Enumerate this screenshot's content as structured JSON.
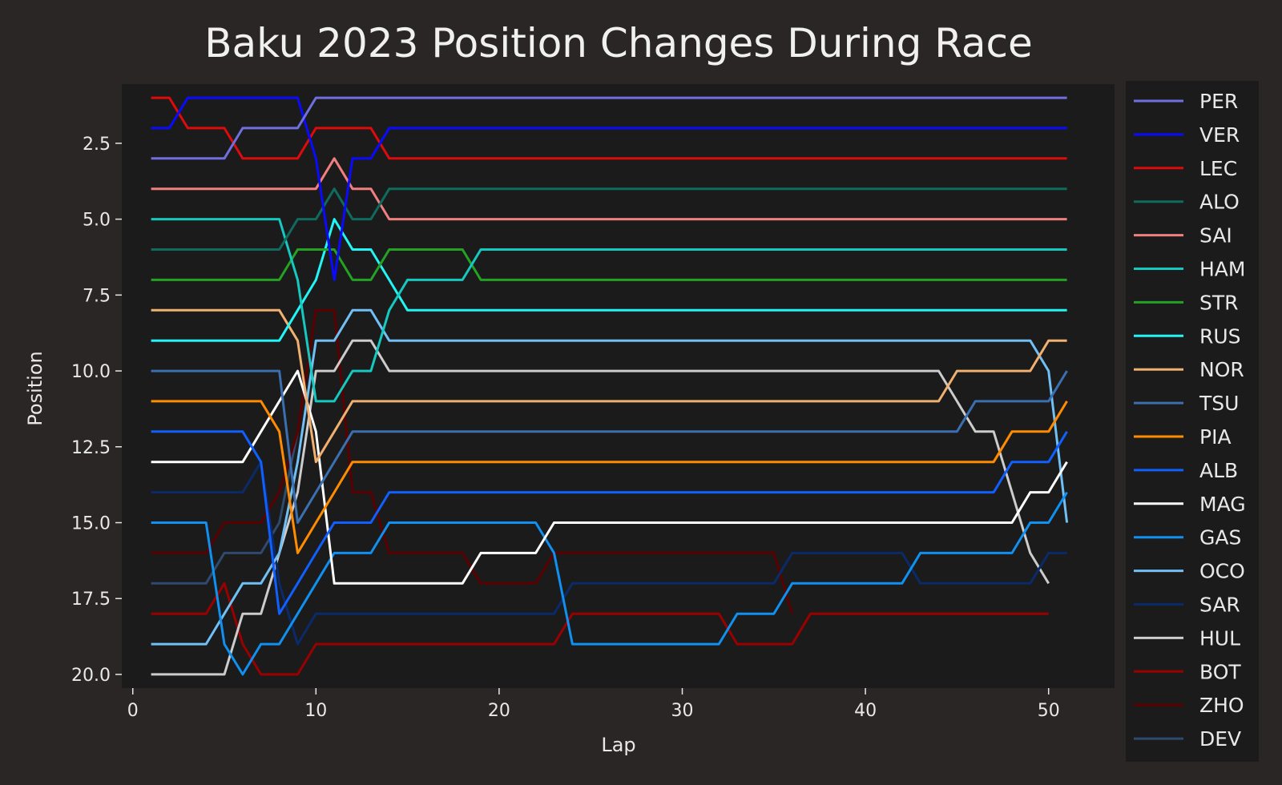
{
  "chart_data": {
    "type": "line",
    "title": "Baku 2023 Position Changes During Race",
    "xlabel": "Lap",
    "ylabel": "Position",
    "xlim": [
      -0.6,
      53.6
    ],
    "ylim": [
      20.45,
      0.55
    ],
    "y_inverted": true,
    "xticks": [
      0,
      10,
      20,
      30,
      40,
      50
    ],
    "yticks": [
      2.5,
      5.0,
      7.5,
      10.0,
      12.5,
      15.0,
      17.5,
      20.0
    ],
    "grid": false,
    "legend_position": "outside-right",
    "series": [
      {
        "name": "PER",
        "color": "#6f6fe0",
        "laps": [
          1,
          51
        ],
        "keypoints": [
          [
            1,
            3
          ],
          [
            5,
            3
          ],
          [
            6,
            2
          ],
          [
            9,
            2
          ],
          [
            10,
            1
          ],
          [
            51,
            1
          ]
        ]
      },
      {
        "name": "VER",
        "color": "#0a0aff",
        "laps": [
          1,
          51
        ],
        "keypoints": [
          [
            1,
            2
          ],
          [
            2,
            2
          ],
          [
            3,
            1
          ],
          [
            9,
            1
          ],
          [
            10,
            3
          ],
          [
            11,
            7
          ],
          [
            12,
            3
          ],
          [
            13,
            3
          ],
          [
            14,
            2
          ],
          [
            51,
            2
          ]
        ]
      },
      {
        "name": "LEC",
        "color": "#dd0b0b",
        "laps": [
          1,
          51
        ],
        "keypoints": [
          [
            1,
            1
          ],
          [
            2,
            1
          ],
          [
            3,
            2
          ],
          [
            5,
            2
          ],
          [
            6,
            3
          ],
          [
            9,
            3
          ],
          [
            10,
            2
          ],
          [
            13,
            2
          ],
          [
            14,
            3
          ],
          [
            51,
            3
          ]
        ]
      },
      {
        "name": "ALO",
        "color": "#0e6b5d",
        "laps": [
          1,
          51
        ],
        "keypoints": [
          [
            1,
            6
          ],
          [
            8,
            6
          ],
          [
            9,
            5
          ],
          [
            10,
            5
          ],
          [
            11,
            4
          ],
          [
            12,
            5
          ],
          [
            13,
            5
          ],
          [
            14,
            4
          ],
          [
            51,
            4
          ]
        ]
      },
      {
        "name": "SAI",
        "color": "#f08080",
        "laps": [
          1,
          51
        ],
        "keypoints": [
          [
            1,
            4
          ],
          [
            10,
            4
          ],
          [
            11,
            3
          ],
          [
            12,
            4
          ],
          [
            13,
            4
          ],
          [
            14,
            5
          ],
          [
            51,
            5
          ]
        ]
      },
      {
        "name": "HAM",
        "color": "#15c9c0",
        "laps": [
          1,
          51
        ],
        "keypoints": [
          [
            1,
            5
          ],
          [
            8,
            5
          ],
          [
            9,
            7
          ],
          [
            10,
            11
          ],
          [
            11,
            11
          ],
          [
            12,
            10
          ],
          [
            13,
            10
          ],
          [
            14,
            8
          ],
          [
            15,
            7
          ],
          [
            18,
            7
          ],
          [
            19,
            6
          ],
          [
            51,
            6
          ]
        ]
      },
      {
        "name": "STR",
        "color": "#23a223",
        "laps": [
          1,
          51
        ],
        "keypoints": [
          [
            1,
            7
          ],
          [
            8,
            7
          ],
          [
            9,
            6
          ],
          [
            11,
            6
          ],
          [
            12,
            7
          ],
          [
            13,
            7
          ],
          [
            14,
            6
          ],
          [
            18,
            6
          ],
          [
            19,
            7
          ],
          [
            51,
            7
          ]
        ]
      },
      {
        "name": "RUS",
        "color": "#22f5f5",
        "laps": [
          1,
          51
        ],
        "keypoints": [
          [
            1,
            9
          ],
          [
            8,
            9
          ],
          [
            9,
            8
          ],
          [
            10,
            7
          ],
          [
            11,
            5
          ],
          [
            12,
            6
          ],
          [
            13,
            6
          ],
          [
            14,
            7
          ],
          [
            15,
            8
          ],
          [
            51,
            8
          ]
        ]
      },
      {
        "name": "NOR",
        "color": "#f0b070",
        "laps": [
          1,
          51
        ],
        "keypoints": [
          [
            1,
            8
          ],
          [
            8,
            8
          ],
          [
            9,
            9
          ],
          [
            10,
            13
          ],
          [
            11,
            12
          ],
          [
            12,
            11
          ],
          [
            44,
            11
          ],
          [
            45,
            10
          ],
          [
            49,
            10
          ],
          [
            50,
            9
          ],
          [
            51,
            9
          ]
        ]
      },
      {
        "name": "TSU",
        "color": "#3a6fb0",
        "laps": [
          1,
          51
        ],
        "keypoints": [
          [
            1,
            10
          ],
          [
            8,
            10
          ],
          [
            9,
            15
          ],
          [
            10,
            14
          ],
          [
            11,
            13
          ],
          [
            12,
            12
          ],
          [
            45,
            12
          ],
          [
            46,
            11
          ],
          [
            50,
            11
          ],
          [
            51,
            10
          ]
        ]
      },
      {
        "name": "PIA",
        "color": "#ff8c00",
        "laps": [
          1,
          51
        ],
        "keypoints": [
          [
            1,
            11
          ],
          [
            7,
            11
          ],
          [
            8,
            12
          ],
          [
            9,
            16
          ],
          [
            10,
            15
          ],
          [
            11,
            14
          ],
          [
            12,
            13
          ],
          [
            47,
            13
          ],
          [
            48,
            12
          ],
          [
            50,
            12
          ],
          [
            51,
            11
          ]
        ]
      },
      {
        "name": "ALB",
        "color": "#1060ff",
        "laps": [
          1,
          51
        ],
        "keypoints": [
          [
            1,
            12
          ],
          [
            6,
            12
          ],
          [
            7,
            13
          ],
          [
            8,
            18
          ],
          [
            9,
            17
          ],
          [
            10,
            16
          ],
          [
            11,
            15
          ],
          [
            13,
            15
          ],
          [
            14,
            14
          ],
          [
            47,
            14
          ],
          [
            48,
            13
          ],
          [
            50,
            13
          ],
          [
            51,
            12
          ]
        ]
      },
      {
        "name": "MAG",
        "color": "#ffffff",
        "laps": [
          1,
          51
        ],
        "keypoints": [
          [
            1,
            13
          ],
          [
            6,
            13
          ],
          [
            9,
            10
          ],
          [
            10,
            12
          ],
          [
            11,
            17
          ],
          [
            18,
            17
          ],
          [
            19,
            16
          ],
          [
            22,
            16
          ],
          [
            23,
            15
          ],
          [
            48,
            15
          ],
          [
            49,
            14
          ],
          [
            50,
            14
          ],
          [
            51,
            13
          ]
        ]
      },
      {
        "name": "GAS",
        "color": "#1090f0",
        "laps": [
          1,
          51
        ],
        "keypoints": [
          [
            1,
            15
          ],
          [
            4,
            15
          ],
          [
            5,
            19
          ],
          [
            6,
            20
          ],
          [
            7,
            19
          ],
          [
            8,
            19
          ],
          [
            9,
            18
          ],
          [
            10,
            17
          ],
          [
            11,
            16
          ],
          [
            13,
            16
          ],
          [
            14,
            15
          ],
          [
            22,
            15
          ],
          [
            23,
            16
          ],
          [
            24,
            19
          ],
          [
            32,
            19
          ],
          [
            33,
            18
          ],
          [
            35,
            18
          ],
          [
            36,
            17
          ],
          [
            42,
            17
          ],
          [
            43,
            16
          ],
          [
            48,
            16
          ],
          [
            49,
            15
          ],
          [
            50,
            15
          ],
          [
            51,
            14
          ]
        ]
      },
      {
        "name": "OCO",
        "color": "#70c0f5",
        "laps": [
          1,
          51
        ],
        "keypoints": [
          [
            1,
            19
          ],
          [
            4,
            19
          ],
          [
            5,
            18
          ],
          [
            6,
            17
          ],
          [
            7,
            17
          ],
          [
            8,
            16
          ],
          [
            9,
            13
          ],
          [
            10,
            9
          ],
          [
            11,
            9
          ],
          [
            12,
            8
          ],
          [
            13,
            8
          ],
          [
            14,
            9
          ],
          [
            49,
            9
          ],
          [
            50,
            10
          ],
          [
            51,
            15
          ]
        ]
      },
      {
        "name": "SAR",
        "color": "#0a2a6a",
        "laps": [
          1,
          51
        ],
        "keypoints": [
          [
            1,
            14
          ],
          [
            6,
            14
          ],
          [
            7,
            13
          ],
          [
            8,
            17
          ],
          [
            9,
            19
          ],
          [
            10,
            18
          ],
          [
            23,
            18
          ],
          [
            24,
            17
          ],
          [
            35,
            17
          ],
          [
            36,
            16
          ],
          [
            42,
            16
          ],
          [
            43,
            17
          ],
          [
            49,
            17
          ],
          [
            50,
            16
          ],
          [
            51,
            16
          ]
        ]
      },
      {
        "name": "HUL",
        "color": "#cccccc",
        "laps": [
          1,
          50
        ],
        "keypoints": [
          [
            1,
            20
          ],
          [
            5,
            20
          ],
          [
            6,
            18
          ],
          [
            7,
            18
          ],
          [
            8,
            16
          ],
          [
            9,
            14
          ],
          [
            10,
            10
          ],
          [
            11,
            10
          ],
          [
            12,
            9
          ],
          [
            13,
            9
          ],
          [
            14,
            10
          ],
          [
            44,
            10
          ],
          [
            45,
            11
          ],
          [
            46,
            12
          ],
          [
            47,
            12
          ],
          [
            48,
            14
          ],
          [
            49,
            16
          ],
          [
            50,
            17
          ]
        ]
      },
      {
        "name": "BOT",
        "color": "#9a0000",
        "laps": [
          1,
          50
        ],
        "keypoints": [
          [
            1,
            18
          ],
          [
            4,
            18
          ],
          [
            5,
            17
          ],
          [
            6,
            19
          ],
          [
            7,
            20
          ],
          [
            9,
            20
          ],
          [
            10,
            19
          ],
          [
            23,
            19
          ],
          [
            24,
            18
          ],
          [
            32,
            18
          ],
          [
            33,
            19
          ],
          [
            36,
            19
          ],
          [
            37,
            18
          ],
          [
            50,
            18
          ]
        ]
      },
      {
        "name": "ZHO",
        "color": "#5a0000",
        "laps": [
          1,
          36
        ],
        "keypoints": [
          [
            1,
            16
          ],
          [
            4,
            16
          ],
          [
            5,
            15
          ],
          [
            7,
            15
          ],
          [
            8,
            14
          ],
          [
            9,
            12
          ],
          [
            10,
            8
          ],
          [
            11,
            8
          ],
          [
            12,
            14
          ],
          [
            13,
            14
          ],
          [
            14,
            16
          ],
          [
            18,
            16
          ],
          [
            19,
            17
          ],
          [
            22,
            17
          ],
          [
            23,
            16
          ],
          [
            35,
            16
          ],
          [
            36,
            18
          ]
        ]
      },
      {
        "name": "DEV",
        "color": "#2e4a6e",
        "laps": [
          1,
          9
        ],
        "keypoints": [
          [
            1,
            17
          ],
          [
            4,
            17
          ],
          [
            5,
            16
          ],
          [
            7,
            16
          ],
          [
            8,
            15
          ],
          [
            9,
            12
          ]
        ]
      }
    ]
  }
}
